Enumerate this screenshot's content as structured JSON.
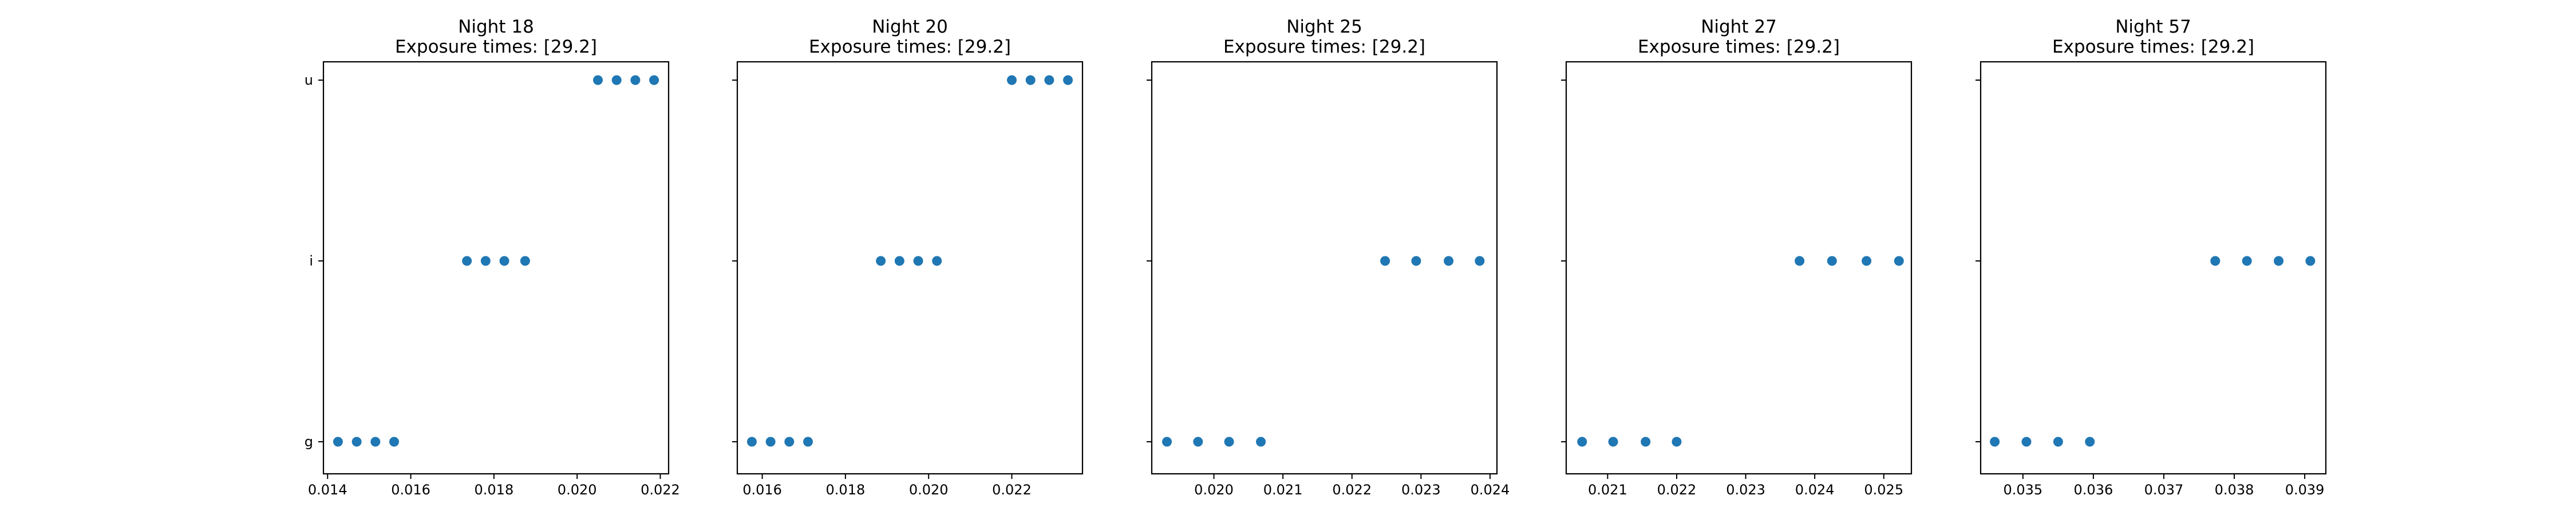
{
  "chart_data": [
    {
      "type": "scatter",
      "title": "Night 18",
      "subtitle": "Exposure times: [29.2]",
      "categories": [
        "g",
        "i",
        "u"
      ],
      "xlim": [
        0.0139,
        0.0222
      ],
      "xticks": [
        0.014,
        0.016,
        0.018,
        0.02,
        0.022
      ],
      "xtick_labels": [
        "0.014",
        "0.016",
        "0.018",
        "0.020",
        "0.022"
      ],
      "points": [
        {
          "x": 0.01425,
          "y": "g"
        },
        {
          "x": 0.0147,
          "y": "g"
        },
        {
          "x": 0.01515,
          "y": "g"
        },
        {
          "x": 0.0156,
          "y": "g"
        },
        {
          "x": 0.01735,
          "y": "i"
        },
        {
          "x": 0.0178,
          "y": "i"
        },
        {
          "x": 0.01825,
          "y": "i"
        },
        {
          "x": 0.01875,
          "y": "i"
        },
        {
          "x": 0.0205,
          "y": "u"
        },
        {
          "x": 0.02095,
          "y": "u"
        },
        {
          "x": 0.0214,
          "y": "u"
        },
        {
          "x": 0.02185,
          "y": "u"
        }
      ]
    },
    {
      "type": "scatter",
      "title": "Night 20",
      "subtitle": "Exposure times: [29.2]",
      "categories": [
        "g",
        "i",
        "u"
      ],
      "xlim": [
        0.0154,
        0.0237
      ],
      "xticks": [
        0.016,
        0.018,
        0.02,
        0.022
      ],
      "xtick_labels": [
        "0.016",
        "0.018",
        "0.020",
        "0.022"
      ],
      "points": [
        {
          "x": 0.01575,
          "y": "g"
        },
        {
          "x": 0.0162,
          "y": "g"
        },
        {
          "x": 0.01665,
          "y": "g"
        },
        {
          "x": 0.0171,
          "y": "g"
        },
        {
          "x": 0.01885,
          "y": "i"
        },
        {
          "x": 0.0193,
          "y": "i"
        },
        {
          "x": 0.01975,
          "y": "i"
        },
        {
          "x": 0.0202,
          "y": "i"
        },
        {
          "x": 0.022,
          "y": "u"
        },
        {
          "x": 0.02245,
          "y": "u"
        },
        {
          "x": 0.0229,
          "y": "u"
        },
        {
          "x": 0.02335,
          "y": "u"
        }
      ]
    },
    {
      "type": "scatter",
      "title": "Night 25",
      "subtitle": "Exposure times: [29.2]",
      "categories": [
        "g",
        "i",
        "u"
      ],
      "xlim": [
        0.0191,
        0.0241
      ],
      "xticks": [
        0.02,
        0.021,
        0.022,
        0.023,
        0.024
      ],
      "xtick_labels": [
        "0.020",
        "0.021",
        "0.022",
        "0.023",
        "0.024"
      ],
      "points": [
        {
          "x": 0.01932,
          "y": "g"
        },
        {
          "x": 0.01977,
          "y": "g"
        },
        {
          "x": 0.02022,
          "y": "g"
        },
        {
          "x": 0.02068,
          "y": "g"
        },
        {
          "x": 0.02248,
          "y": "i"
        },
        {
          "x": 0.02293,
          "y": "i"
        },
        {
          "x": 0.0234,
          "y": "i"
        },
        {
          "x": 0.02385,
          "y": "i"
        }
      ]
    },
    {
      "type": "scatter",
      "title": "Night 27",
      "subtitle": "Exposure times: [29.2]",
      "categories": [
        "g",
        "i",
        "u"
      ],
      "xlim": [
        0.0204,
        0.0254
      ],
      "xticks": [
        0.021,
        0.022,
        0.023,
        0.024,
        0.025
      ],
      "xtick_labels": [
        "0.021",
        "0.022",
        "0.023",
        "0.024",
        "0.025"
      ],
      "points": [
        {
          "x": 0.02063,
          "y": "g"
        },
        {
          "x": 0.02108,
          "y": "g"
        },
        {
          "x": 0.02155,
          "y": "g"
        },
        {
          "x": 0.022,
          "y": "g"
        },
        {
          "x": 0.02378,
          "y": "i"
        },
        {
          "x": 0.02425,
          "y": "i"
        },
        {
          "x": 0.02475,
          "y": "i"
        },
        {
          "x": 0.02522,
          "y": "i"
        }
      ]
    },
    {
      "type": "scatter",
      "title": "Night 57",
      "subtitle": "Exposure times: [29.2]",
      "categories": [
        "g",
        "i",
        "u"
      ],
      "xlim": [
        0.0344,
        0.0393
      ],
      "xticks": [
        0.035,
        0.036,
        0.037,
        0.038,
        0.039
      ],
      "xtick_labels": [
        "0.035",
        "0.036",
        "0.037",
        "0.038",
        "0.039"
      ],
      "points": [
        {
          "x": 0.0346,
          "y": "g"
        },
        {
          "x": 0.03505,
          "y": "g"
        },
        {
          "x": 0.0355,
          "y": "g"
        },
        {
          "x": 0.03595,
          "y": "g"
        },
        {
          "x": 0.03773,
          "y": "i"
        },
        {
          "x": 0.03818,
          "y": "i"
        },
        {
          "x": 0.03863,
          "y": "i"
        },
        {
          "x": 0.03908,
          "y": "i"
        }
      ],
      "marker_color": "#1f77b4"
    }
  ]
}
